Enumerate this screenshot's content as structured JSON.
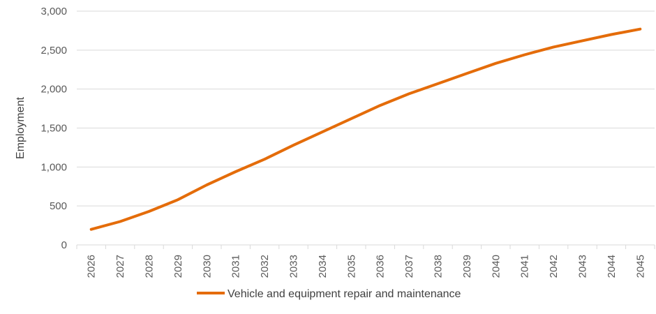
{
  "chart_data": {
    "type": "line",
    "title": "",
    "xlabel": "",
    "ylabel": "Employment",
    "ylim": [
      0,
      3000
    ],
    "yticks": [
      0,
      500,
      1000,
      1500,
      2000,
      2500,
      3000
    ],
    "ytick_labels": [
      "0",
      "500",
      "1,000",
      "1,500",
      "2,000",
      "2,500",
      "3,000"
    ],
    "grid": true,
    "legend_position": "bottom",
    "x": [
      "2026",
      "2027",
      "2028",
      "2029",
      "2030",
      "2031",
      "2032",
      "2033",
      "2034",
      "2035",
      "2036",
      "2037",
      "2038",
      "2039",
      "2040",
      "2041",
      "2042",
      "2043",
      "2044",
      "2045"
    ],
    "series": [
      {
        "name": "Vehicle and equipment repair and maintenance",
        "color": "#E46C0A",
        "values": [
          200,
          300,
          430,
          580,
          770,
          940,
          1100,
          1280,
          1450,
          1620,
          1790,
          1940,
          2070,
          2200,
          2330,
          2440,
          2540,
          2620,
          2700,
          2770
        ]
      }
    ]
  }
}
